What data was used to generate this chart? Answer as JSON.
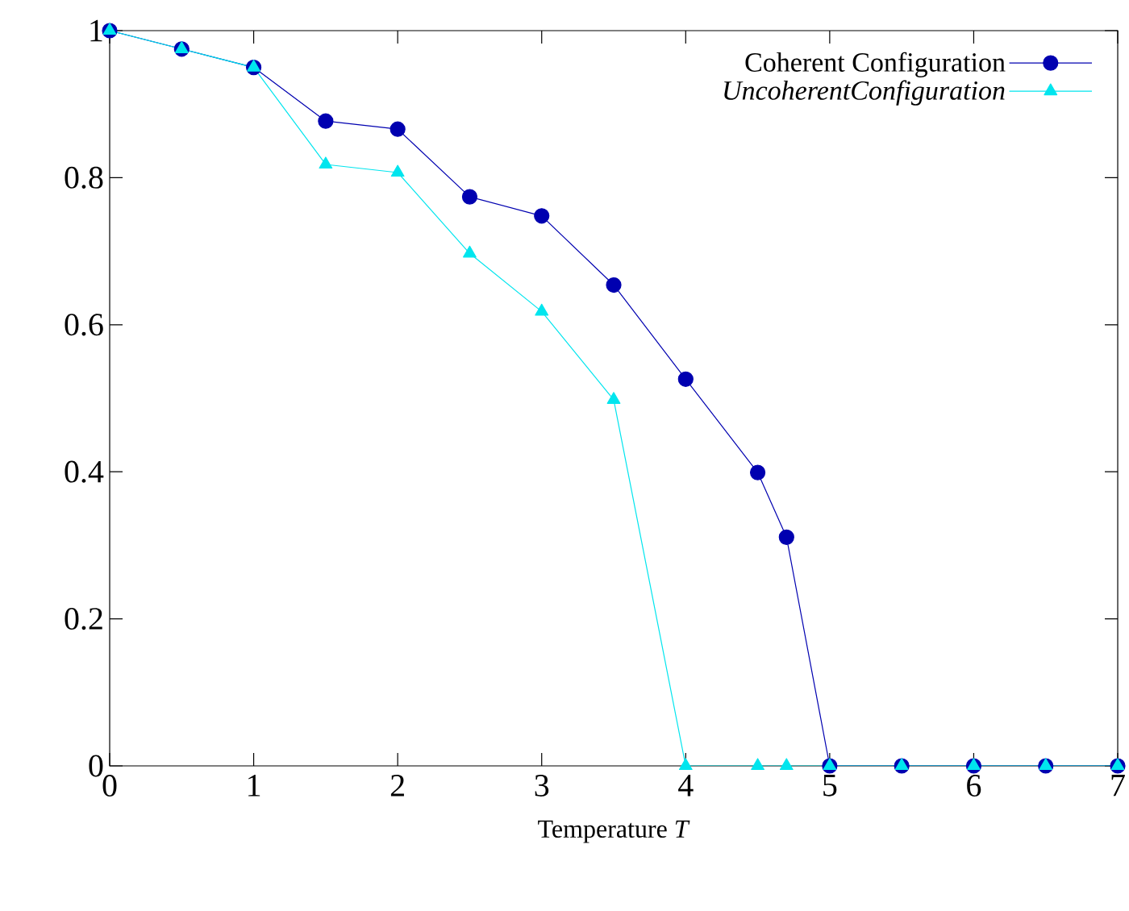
{
  "chart_data": {
    "type": "line",
    "xlabel": "Temperature *T*",
    "xlim": [
      0,
      7
    ],
    "ylim": [
      0,
      1
    ],
    "xticks": [
      0,
      1,
      2,
      3,
      4,
      5,
      6,
      7
    ],
    "yticks": [
      0,
      0.2,
      0.4,
      0.6,
      0.8,
      1
    ],
    "legend": "top right",
    "series": [
      {
        "name": "Coherent Configuration",
        "color": "#0000b0",
        "marker": "circle",
        "x": [
          0,
          0.5,
          1,
          1.5,
          2,
          2.5,
          3,
          3.5,
          4,
          4.5,
          4.7,
          5,
          5.5,
          6,
          6.5,
          7
        ],
        "values": [
          1,
          0.975,
          0.95,
          0.877,
          0.866,
          0.774,
          0.748,
          0.654,
          0.526,
          0.399,
          0.311,
          0,
          0,
          0,
          0,
          0
        ]
      },
      {
        "name": "*UncoherentConfiguration*",
        "color": "#00e5ee",
        "marker": "triangle",
        "x": [
          0,
          0.5,
          1,
          1.5,
          2,
          2.5,
          3,
          3.5,
          4,
          4.5,
          4.7,
          5,
          5.5,
          6,
          6.5,
          7
        ],
        "values": [
          1,
          0.975,
          0.95,
          0.818,
          0.807,
          0.697,
          0.618,
          0.498,
          0,
          0,
          0,
          0,
          0,
          0,
          0,
          0
        ]
      }
    ]
  }
}
